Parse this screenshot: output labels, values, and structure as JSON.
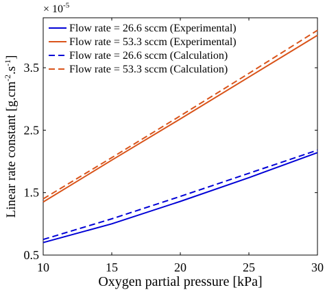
{
  "chart_data": {
    "type": "line",
    "title": "",
    "xlabel": "Oxygen partial pressure [kPa]",
    "ylabel": "Linear rate constant [g.cm",
    "ylabel_sup1": "-2",
    "ylabel_mid": ".s",
    "ylabel_sup2": "-1",
    "ylabel_end": "]",
    "y_multiplier_base": "× 10",
    "y_multiplier_exp": "-5",
    "xlim": [
      10,
      30
    ],
    "ylim": [
      0.5,
      4.3
    ],
    "xticks": [
      10,
      15,
      20,
      25,
      30
    ],
    "xtick_labels": [
      "10",
      "15",
      "20",
      "25",
      "30"
    ],
    "yticks": [
      0.5,
      1.5,
      2.5,
      3.5
    ],
    "ytick_labels": [
      "0.5",
      "1.5",
      "2.5",
      "3.5"
    ],
    "grid": false,
    "legend_position": "top-left",
    "series": [
      {
        "name": "Flow rate = 26.6 sccm (Experimental)",
        "color": "#0000d6",
        "dash": "solid",
        "x": [
          10,
          15,
          20,
          25,
          30
        ],
        "y": [
          0.7,
          1.0,
          1.36,
          1.74,
          2.14
        ]
      },
      {
        "name": "Flow rate = 53.3 sccm (Experimental)",
        "color": "#d95319",
        "dash": "solid",
        "x": [
          10,
          15,
          20,
          25,
          30
        ],
        "y": [
          1.35,
          2.02,
          2.68,
          3.35,
          4.02
        ]
      },
      {
        "name": "Flow rate = 26.6 sccm (Calculation)",
        "color": "#0000d6",
        "dash": "dashed",
        "x": [
          10,
          15,
          20,
          25,
          30
        ],
        "y": [
          0.75,
          1.08,
          1.44,
          1.81,
          2.18
        ]
      },
      {
        "name": "Flow rate = 53.3 sccm (Calculation)",
        "color": "#d95319",
        "dash": "dashed",
        "x": [
          10,
          15,
          20,
          25,
          30
        ],
        "y": [
          1.4,
          2.06,
          2.73,
          3.41,
          4.1
        ]
      }
    ]
  }
}
